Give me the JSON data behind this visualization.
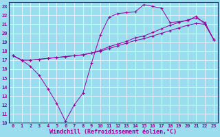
{
  "xlabel": "Windchill (Refroidissement éolien,°C)",
  "background_color": "#99ddee",
  "grid_color": "#aaddcc",
  "line_color": "#990099",
  "spine_color": "#660066",
  "xlim": [
    -0.5,
    23.5
  ],
  "ylim": [
    10,
    23.5
  ],
  "xticks": [
    0,
    1,
    2,
    3,
    4,
    5,
    6,
    7,
    8,
    9,
    10,
    11,
    12,
    13,
    14,
    15,
    16,
    17,
    18,
    19,
    20,
    21,
    22,
    23
  ],
  "yticks": [
    10,
    11,
    12,
    13,
    14,
    15,
    16,
    17,
    18,
    19,
    20,
    21,
    22,
    23
  ],
  "line1_x": [
    0,
    1,
    2,
    3,
    4,
    5,
    6,
    7,
    8,
    9,
    10,
    11,
    12,
    13,
    14,
    15,
    16,
    17,
    18,
    19,
    20,
    21,
    22,
    23
  ],
  "line1_y": [
    17.5,
    17.0,
    16.3,
    15.3,
    13.8,
    12.2,
    10.2,
    12.0,
    13.3,
    16.7,
    19.8,
    21.8,
    22.2,
    22.3,
    22.4,
    23.2,
    23.0,
    22.8,
    21.2,
    21.3,
    21.4,
    21.9,
    21.0,
    19.3
  ],
  "line2_x": [
    0,
    1,
    2,
    3,
    4,
    5,
    6,
    7,
    8,
    9,
    10,
    11,
    12,
    13,
    14,
    15,
    16,
    17,
    18,
    19,
    20,
    21,
    22,
    23
  ],
  "line2_y": [
    17.5,
    17.0,
    17.0,
    17.1,
    17.2,
    17.3,
    17.4,
    17.5,
    17.6,
    17.8,
    18.1,
    18.5,
    18.8,
    19.1,
    19.5,
    19.7,
    20.1,
    20.5,
    20.9,
    21.2,
    21.5,
    21.7,
    21.2,
    19.3
  ],
  "line3_x": [
    0,
    1,
    2,
    3,
    4,
    5,
    6,
    7,
    8,
    9,
    10,
    11,
    12,
    13,
    14,
    15,
    16,
    17,
    18,
    19,
    20,
    21,
    22,
    23
  ],
  "line3_y": [
    17.5,
    17.0,
    17.0,
    17.1,
    17.2,
    17.3,
    17.4,
    17.5,
    17.6,
    17.8,
    18.0,
    18.3,
    18.6,
    18.9,
    19.2,
    19.4,
    19.7,
    20.0,
    20.3,
    20.6,
    20.9,
    21.1,
    21.0,
    19.3
  ],
  "tick_fontsize": 5,
  "label_fontsize": 6
}
